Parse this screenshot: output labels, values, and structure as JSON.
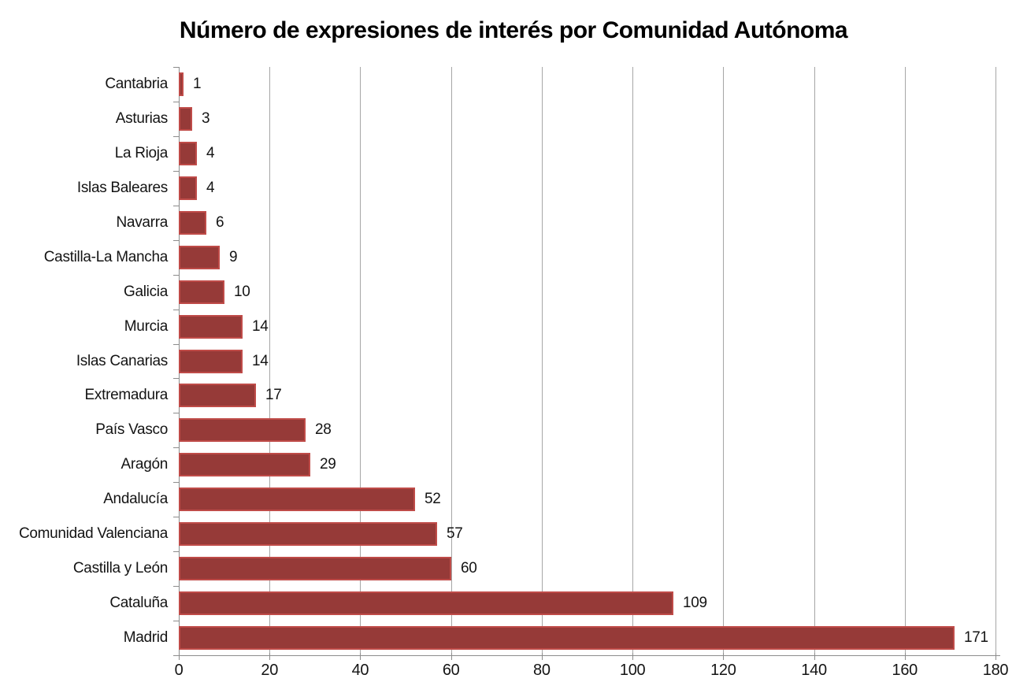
{
  "chart_data": {
    "type": "bar",
    "orientation": "horizontal",
    "title": "Número de expresiones de interés por Comunidad Autónoma",
    "categories_top_to_bottom": [
      "Cantabria",
      "Asturias",
      "La Rioja",
      "Islas Baleares",
      "Navarra",
      "Castilla-La Mancha",
      "Galicia",
      "Murcia",
      "Islas Canarias",
      "Extremadura",
      "País Vasco",
      "Aragón",
      "Andalucía",
      "Comunidad Valenciana",
      "Castilla y León",
      "Cataluña",
      "Madrid"
    ],
    "values": [
      1,
      3,
      4,
      4,
      6,
      9,
      10,
      14,
      14,
      17,
      28,
      29,
      52,
      57,
      60,
      109,
      171
    ],
    "data_labels_shown": true,
    "xlabel": "",
    "ylabel": "",
    "xlim": [
      0,
      180
    ],
    "xticks": [
      0,
      20,
      40,
      60,
      80,
      100,
      120,
      140,
      160,
      180
    ],
    "grid": "vertical-only",
    "legend": "none",
    "colors": {
      "bar_fill": "#963a38",
      "bar_border": "#bf4b48",
      "gridline": "#a6a6a6",
      "axis_line": "#8c8c8c",
      "title_text": "#000000",
      "label_text": "#141414",
      "background": "#ffffff"
    }
  }
}
